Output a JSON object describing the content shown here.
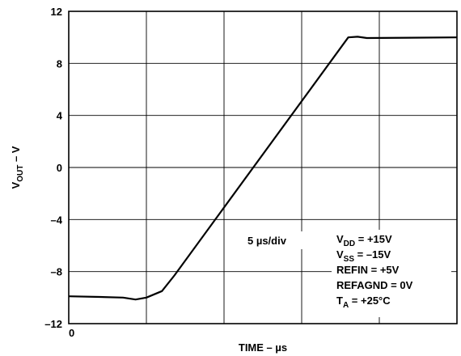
{
  "chart_data": {
    "type": "line",
    "ylabel_main": "V",
    "ylabel_sub": "OUT",
    "ylabel_suffix": " – V",
    "xlabel": "TIME – µs",
    "ylim": [
      -12,
      12
    ],
    "yticks": [
      "12",
      "8",
      "4",
      "0",
      "–4",
      "–8",
      "–12"
    ],
    "ytick_values": [
      12,
      8,
      4,
      0,
      -4,
      -8,
      -12
    ],
    "xlim": [
      0,
      25
    ],
    "xtick_label": "0",
    "x_divisions": 5,
    "grid": true,
    "division_label": "5 µs/div",
    "series": [
      {
        "x": [
          0,
          2.0,
          3.5,
          4.3,
          5.0,
          6.0,
          6.8,
          18.0,
          18.6,
          19.2,
          25.0
        ],
        "y": [
          -9.9,
          -9.95,
          -10.0,
          -10.15,
          -10.0,
          -9.5,
          -8.3,
          10.0,
          10.05,
          9.95,
          10.0
        ]
      }
    ],
    "conditions": [
      {
        "main": "V",
        "sub": "DD",
        "rest": " = +15V"
      },
      {
        "main": "V",
        "sub": "SS",
        "rest": " = –15V"
      },
      {
        "main": "REFIN = +5V",
        "sub": "",
        "rest": ""
      },
      {
        "main": "REFAGND = 0V",
        "sub": "",
        "rest": ""
      },
      {
        "main": "T",
        "sub": "A",
        "rest": " = +25°C"
      }
    ]
  }
}
